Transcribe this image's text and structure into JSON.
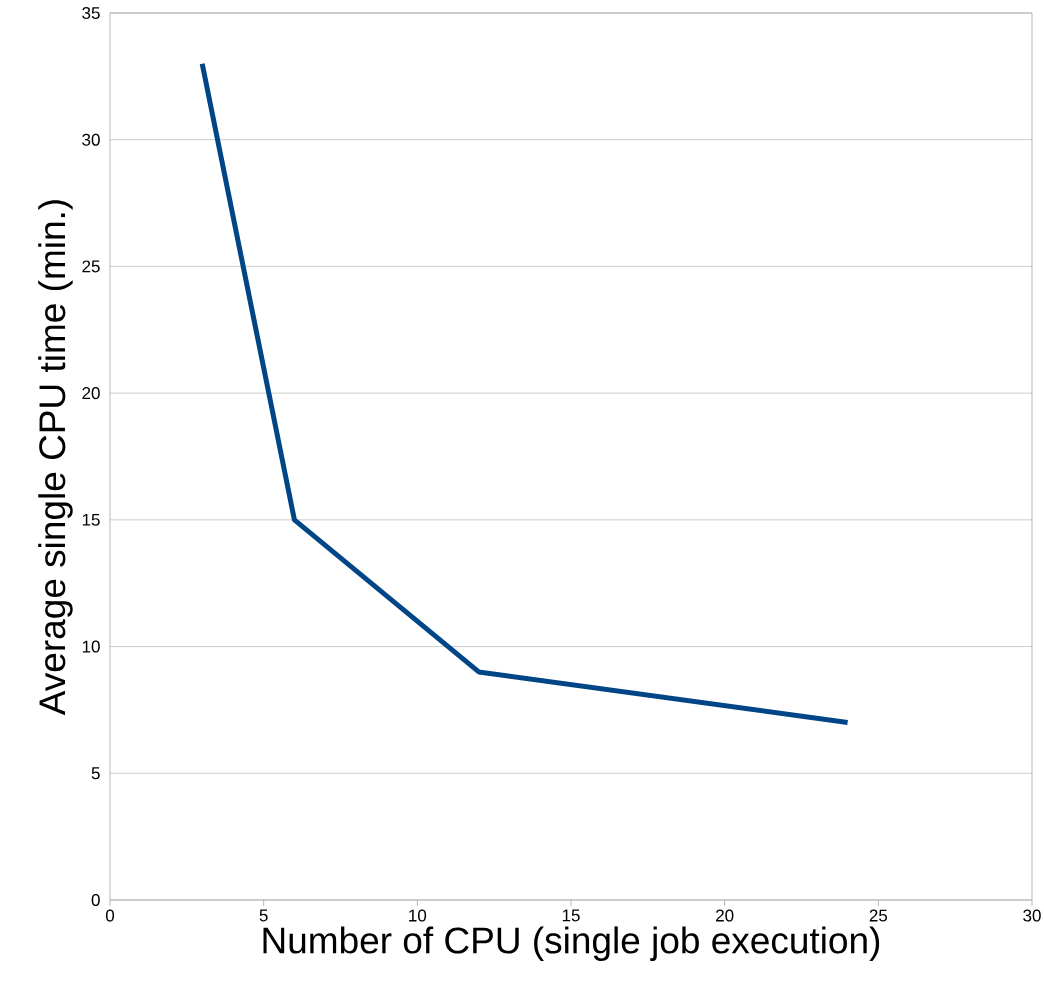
{
  "chart_data": {
    "type": "line",
    "xlabel": "Number of CPU (single job execution)",
    "ylabel": "Average single CPU time (min.)",
    "x": [
      3,
      6,
      12,
      24
    ],
    "series": [
      {
        "color": "#004586",
        "values": [
          33,
          15,
          9,
          7
        ]
      }
    ],
    "xlim": [
      0,
      30
    ],
    "xticks": [
      0,
      5,
      10,
      15,
      20,
      25,
      30
    ],
    "ylim": [
      0,
      35
    ],
    "yticks": [
      0,
      5,
      10,
      15,
      20,
      25,
      30,
      35
    ],
    "grid": "y",
    "line_style": "solid"
  }
}
